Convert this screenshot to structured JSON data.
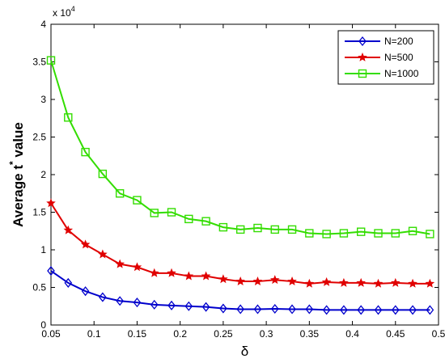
{
  "chart_data": {
    "type": "line",
    "x": [
      0.05,
      0.07,
      0.09,
      0.11,
      0.13,
      0.15,
      0.17,
      0.19,
      0.21,
      0.23,
      0.25,
      0.27,
      0.29,
      0.31,
      0.33,
      0.35,
      0.37,
      0.39,
      0.41,
      0.43,
      0.45,
      0.47,
      0.49
    ],
    "series": [
      {
        "name": "N=200",
        "color": "#0000cc",
        "marker": "diamond",
        "values": [
          7200,
          5600,
          4500,
          3700,
          3200,
          3000,
          2700,
          2600,
          2500,
          2400,
          2200,
          2100,
          2100,
          2150,
          2100,
          2100,
          2000,
          2000,
          2000,
          2000,
          2000,
          2000,
          2000
        ]
      },
      {
        "name": "N=500",
        "color": "#e00000",
        "marker": "star",
        "values": [
          16200,
          12600,
          10700,
          9400,
          8100,
          7700,
          6900,
          6900,
          6500,
          6500,
          6100,
          5800,
          5800,
          6000,
          5800,
          5500,
          5700,
          5600,
          5600,
          5500,
          5600,
          5500,
          5500
        ]
      },
      {
        "name": "N=1000",
        "color": "#33dd00",
        "marker": "square",
        "values": [
          35200,
          27600,
          23000,
          20100,
          17500,
          16600,
          14900,
          15000,
          14100,
          13800,
          13000,
          12700,
          12900,
          12700,
          12700,
          12200,
          12100,
          12200,
          12400,
          12200,
          12200,
          12500,
          12100
        ]
      }
    ],
    "xlabel": "δ",
    "ylabel": "Average t * value",
    "ylabel_parts": {
      "before": "Average t",
      "sup": "*",
      "after": " value"
    },
    "exponent_label": {
      "base": "x 10",
      "power": "4"
    },
    "xlim": [
      0.05,
      0.5
    ],
    "ylim": [
      0,
      40000
    ],
    "xticks": [
      0.05,
      0.1,
      0.15,
      0.2,
      0.25,
      0.3,
      0.35,
      0.4,
      0.45,
      0.5
    ],
    "xtick_labels": [
      "0.05",
      "0.1",
      "0.15",
      "0.2",
      "0.25",
      "0.3",
      "0.35",
      "0.4",
      "0.45",
      "0.5"
    ],
    "yticks": [
      0,
      5000,
      10000,
      15000,
      20000,
      25000,
      30000,
      35000,
      40000
    ],
    "ytick_labels": [
      "0",
      "0.5",
      "1",
      "1.5",
      "2",
      "2.5",
      "3",
      "3.5",
      "4"
    ],
    "grid": false,
    "legend": "top-right"
  }
}
